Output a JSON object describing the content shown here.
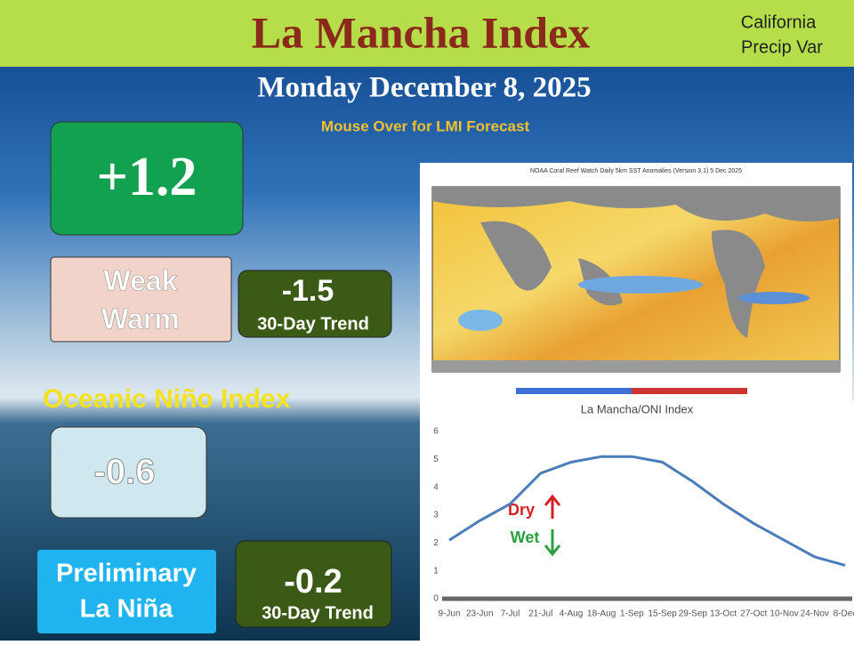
{
  "header": {
    "title": "La Mancha Index",
    "corner_label": [
      "California",
      "Precip Var"
    ]
  },
  "date": "Monday December 8, 2025",
  "hover_note": "Mouse Over for LMI Forecast",
  "lmi": {
    "value": "+1.2",
    "category": [
      "Weak",
      "Warm"
    ],
    "trend_value": "-1.5",
    "trend_label": "30-Day Trend"
  },
  "oni": {
    "heading": "Oceanic Niño Index",
    "value": "-0.6",
    "status": [
      "Preliminary",
      "La Niña"
    ],
    "trend_value": "-0.2",
    "trend_label": "30-Day Trend"
  },
  "map": {
    "title": "NOAA Coral Reef Watch Daily 5km SST Anomalies (Version 3.1)   5 Dec 2025"
  },
  "chart_data": {
    "type": "line",
    "title": "La Mancha/ONI Index",
    "categories": [
      "9-Jun",
      "23-Jun",
      "7-Jul",
      "21-Jul",
      "4-Aug",
      "18-Aug",
      "1-Sep",
      "15-Sep",
      "29-Sep",
      "13-Oct",
      "27-Oct",
      "10-Nov",
      "24-Nov",
      "8-Dec"
    ],
    "series": [
      {
        "name": "La Mancha/ONI Index",
        "color": "#4a7ebb",
        "values": [
          2.1,
          2.8,
          3.4,
          4.5,
          4.9,
          5.1,
          5.1,
          4.9,
          4.2,
          3.4,
          2.7,
          2.1,
          1.5,
          1.2
        ]
      }
    ],
    "ylim": [
      0,
      6
    ],
    "yticks": [
      0,
      1,
      2,
      3,
      4,
      5,
      6
    ],
    "annotations": [
      "Dry",
      "Wet"
    ]
  }
}
